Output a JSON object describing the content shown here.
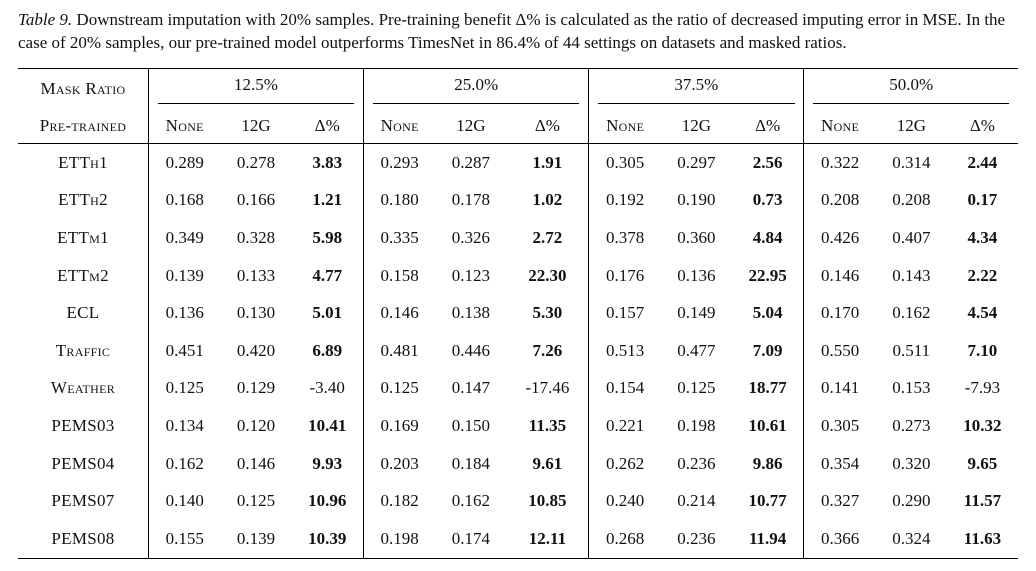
{
  "caption": {
    "label": "Table 9.",
    "text": " Downstream imputation with 20% samples. Pre-training benefit Δ% is calculated as the ratio of decreased imputing error in MSE. In the case of 20% samples, our pre-trained model outperforms TimesNet in 86.4% of 44 settings on datasets and masked ratios."
  },
  "table": {
    "mask_ratio_label": "Mask Ratio",
    "pretrained_label": "Pre-trained",
    "ratios": [
      "12.5%",
      "25.0%",
      "37.5%",
      "50.0%"
    ],
    "subcols": [
      "None",
      "12G",
      "Δ%"
    ],
    "rows": [
      {
        "name": "ETTh1",
        "vals": [
          "0.289",
          "0.278",
          "3.83",
          "0.293",
          "0.287",
          "1.91",
          "0.305",
          "0.297",
          "2.56",
          "0.322",
          "0.314",
          "2.44"
        ]
      },
      {
        "name": "ETTh2",
        "vals": [
          "0.168",
          "0.166",
          "1.21",
          "0.180",
          "0.178",
          "1.02",
          "0.192",
          "0.190",
          "0.73",
          "0.208",
          "0.208",
          "0.17"
        ]
      },
      {
        "name": "ETTm1",
        "vals": [
          "0.349",
          "0.328",
          "5.98",
          "0.335",
          "0.326",
          "2.72",
          "0.378",
          "0.360",
          "4.84",
          "0.426",
          "0.407",
          "4.34"
        ]
      },
      {
        "name": "ETTm2",
        "vals": [
          "0.139",
          "0.133",
          "4.77",
          "0.158",
          "0.123",
          "22.30",
          "0.176",
          "0.136",
          "22.95",
          "0.146",
          "0.143",
          "2.22"
        ]
      },
      {
        "name": "ECL",
        "vals": [
          "0.136",
          "0.130",
          "5.01",
          "0.146",
          "0.138",
          "5.30",
          "0.157",
          "0.149",
          "5.04",
          "0.170",
          "0.162",
          "4.54"
        ]
      },
      {
        "name": "Traffic",
        "vals": [
          "0.451",
          "0.420",
          "6.89",
          "0.481",
          "0.446",
          "7.26",
          "0.513",
          "0.477",
          "7.09",
          "0.550",
          "0.511",
          "7.10"
        ]
      },
      {
        "name": "Weather",
        "vals": [
          "0.125",
          "0.129",
          "-3.40",
          "0.125",
          "0.147",
          "-17.46",
          "0.154",
          "0.125",
          "18.77",
          "0.141",
          "0.153",
          "-7.93"
        ]
      },
      {
        "name": "PEMS03",
        "vals": [
          "0.134",
          "0.120",
          "10.41",
          "0.169",
          "0.150",
          "11.35",
          "0.221",
          "0.198",
          "10.61",
          "0.305",
          "0.273",
          "10.32"
        ]
      },
      {
        "name": "PEMS04",
        "vals": [
          "0.162",
          "0.146",
          "9.93",
          "0.203",
          "0.184",
          "9.61",
          "0.262",
          "0.236",
          "9.86",
          "0.354",
          "0.320",
          "9.65"
        ]
      },
      {
        "name": "PEMS07",
        "vals": [
          "0.140",
          "0.125",
          "10.96",
          "0.182",
          "0.162",
          "10.85",
          "0.240",
          "0.214",
          "10.77",
          "0.327",
          "0.290",
          "11.57"
        ]
      },
      {
        "name": "PEMS08",
        "vals": [
          "0.155",
          "0.139",
          "10.39",
          "0.198",
          "0.174",
          "12.11",
          "0.268",
          "0.236",
          "11.94",
          "0.366",
          "0.324",
          "11.63"
        ]
      }
    ]
  }
}
